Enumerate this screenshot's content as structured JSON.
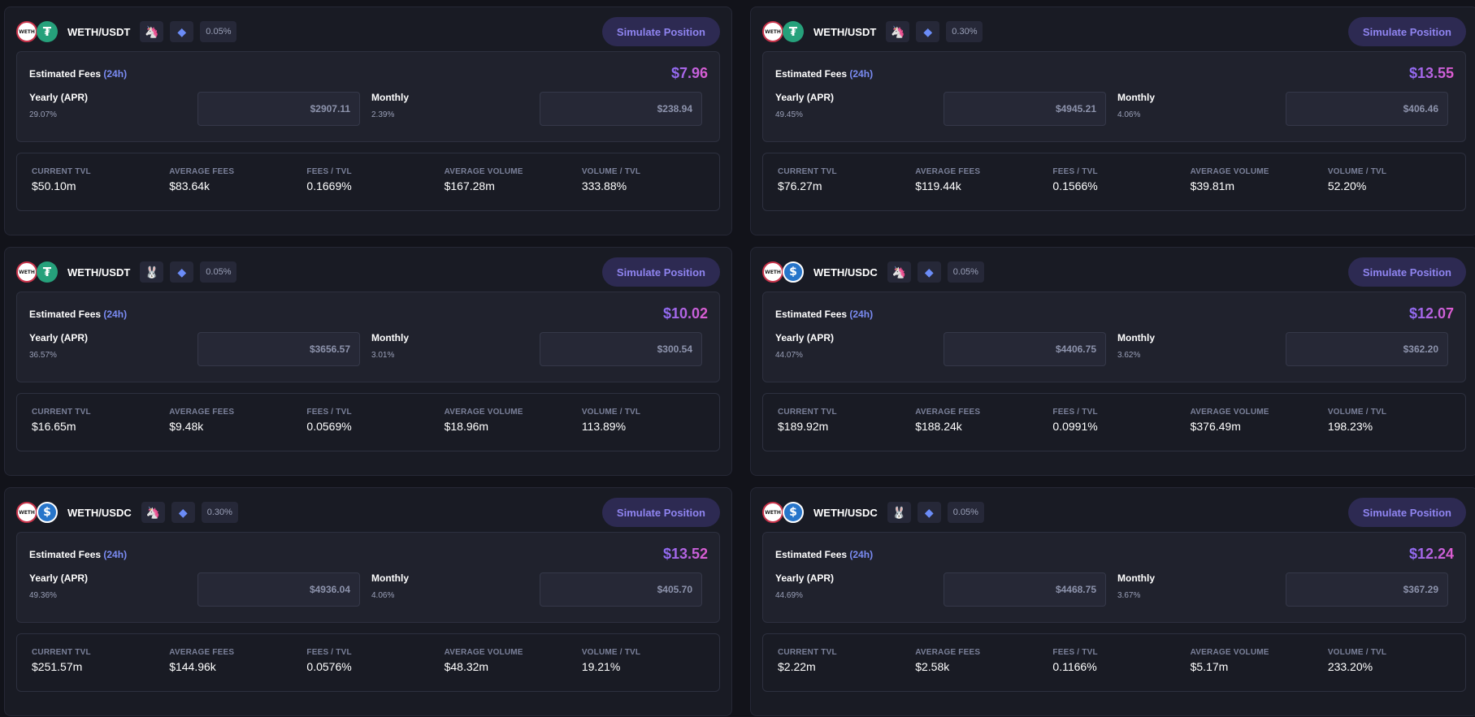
{
  "labels": {
    "simulate": "Simulate Position",
    "estimated_fees": "Estimated Fees",
    "period": "(24h)",
    "yearly": "Yearly (APR)",
    "monthly": "Monthly",
    "current_tvl": "CURRENT TVL",
    "average_fees": "AVERAGE FEES",
    "fees_tvl": "FEES / TVL",
    "average_volume": "AVERAGE VOLUME",
    "volume_tvl": "VOLUME / TVL"
  },
  "icons": {
    "uniswap": "unicorn-icon",
    "pancake": "bunny-icon",
    "ethereum": "ethereum-icon"
  },
  "colors": {
    "accent": "#8f84f0",
    "fees_gradient_start": "#8c6cf5",
    "fees_gradient_end": "#e05cd0"
  },
  "pools": [
    {
      "pair": "WETH/USDT",
      "quote": "usdt",
      "dex": "uniswap",
      "fee": "0.05%",
      "estimated": "$7.96",
      "yearly_pct": "29.07%",
      "yearly_value": "$2907.11",
      "monthly_pct": "2.39%",
      "monthly_value": "$238.94",
      "tvl": "$50.10m",
      "avg_fees": "$83.64k",
      "fees_tvl": "0.1669%",
      "avg_volume": "$167.28m",
      "volume_tvl": "333.88%"
    },
    {
      "pair": "WETH/USDT",
      "quote": "usdt",
      "dex": "uniswap",
      "fee": "0.30%",
      "estimated": "$13.55",
      "yearly_pct": "49.45%",
      "yearly_value": "$4945.21",
      "monthly_pct": "4.06%",
      "monthly_value": "$406.46",
      "tvl": "$76.27m",
      "avg_fees": "$119.44k",
      "fees_tvl": "0.1566%",
      "avg_volume": "$39.81m",
      "volume_tvl": "52.20%"
    },
    {
      "pair": "WETH/USDT",
      "quote": "usdt",
      "dex": "pancake",
      "fee": "0.05%",
      "estimated": "$10.02",
      "yearly_pct": "36.57%",
      "yearly_value": "$3656.57",
      "monthly_pct": "3.01%",
      "monthly_value": "$300.54",
      "tvl": "$16.65m",
      "avg_fees": "$9.48k",
      "fees_tvl": "0.0569%",
      "avg_volume": "$18.96m",
      "volume_tvl": "113.89%"
    },
    {
      "pair": "WETH/USDC",
      "quote": "usdc",
      "dex": "uniswap",
      "fee": "0.05%",
      "estimated": "$12.07",
      "yearly_pct": "44.07%",
      "yearly_value": "$4406.75",
      "monthly_pct": "3.62%",
      "monthly_value": "$362.20",
      "tvl": "$189.92m",
      "avg_fees": "$188.24k",
      "fees_tvl": "0.0991%",
      "avg_volume": "$376.49m",
      "volume_tvl": "198.23%"
    },
    {
      "pair": "WETH/USDC",
      "quote": "usdc",
      "dex": "uniswap",
      "fee": "0.30%",
      "estimated": "$13.52",
      "yearly_pct": "49.36%",
      "yearly_value": "$4936.04",
      "monthly_pct": "4.06%",
      "monthly_value": "$405.70",
      "tvl": "$251.57m",
      "avg_fees": "$144.96k",
      "fees_tvl": "0.0576%",
      "avg_volume": "$48.32m",
      "volume_tvl": "19.21%"
    },
    {
      "pair": "WETH/USDC",
      "quote": "usdc",
      "dex": "pancake",
      "fee": "0.05%",
      "estimated": "$12.24",
      "yearly_pct": "44.69%",
      "yearly_value": "$4468.75",
      "monthly_pct": "3.67%",
      "monthly_value": "$367.29",
      "tvl": "$2.22m",
      "avg_fees": "$2.58k",
      "fees_tvl": "0.1166%",
      "avg_volume": "$5.17m",
      "volume_tvl": "233.20%"
    }
  ]
}
